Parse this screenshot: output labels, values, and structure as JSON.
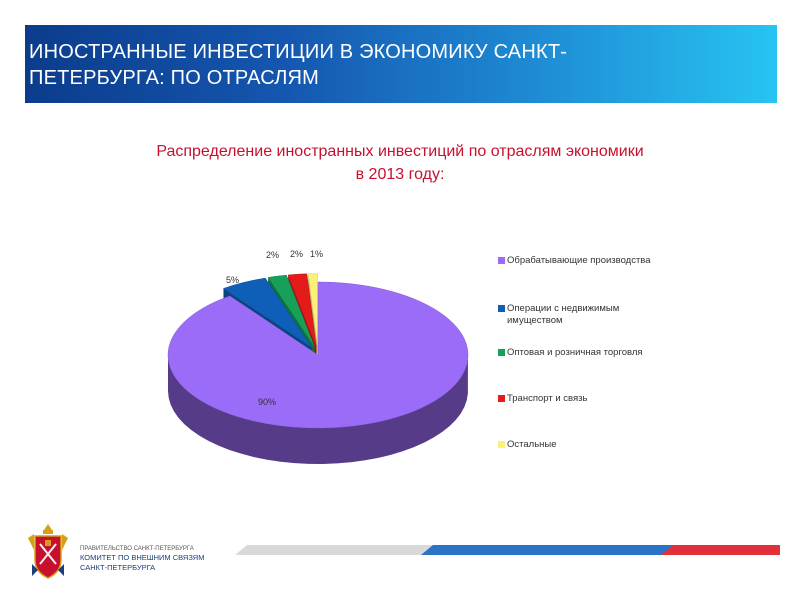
{
  "header": {
    "title_line1": "ИНОСТРАННЫЕ ИНВЕСТИЦИИ В ЭКОНОМИКУ САНКТ-",
    "title_line2": "ПЕТЕРБУРГА: ПО ОТРАСЛЯМ"
  },
  "chart_data": {
    "type": "pie",
    "title_line1": "Распределение иностранных инвестиций по отраслям экономики",
    "title_line2": "в 2013 году:",
    "categories": [
      "Обрабатывающие производства",
      "Операции с недвижимым имуществом",
      "Оптовая и розничная торговля",
      "Транспорт и связь",
      "Остальные"
    ],
    "values": [
      90,
      5,
      2,
      2,
      1
    ],
    "data_labels": [
      "90%",
      "5%",
      "2%",
      "2%",
      "1%"
    ],
    "colors": [
      "#9b6cf7",
      "#0f5fb8",
      "#16a05a",
      "#e31b1b",
      "#fbf17a"
    ],
    "legend": "right",
    "style": "3d-exploded"
  },
  "footer": {
    "org_line1": "ПРАВИТЕЛЬСТВО САНКТ-ПЕТЕРБУРГА",
    "org_line2": "КОМИТЕТ ПО ВНЕШНИМ СВЯЗЯМ",
    "org_line3": "САНКТ-ПЕТЕРБУРГА",
    "logo_icon": "coat-of-arms-icon",
    "accent_colors": [
      "#d9d9d9",
      "#2a73c6",
      "#e0303a"
    ]
  }
}
